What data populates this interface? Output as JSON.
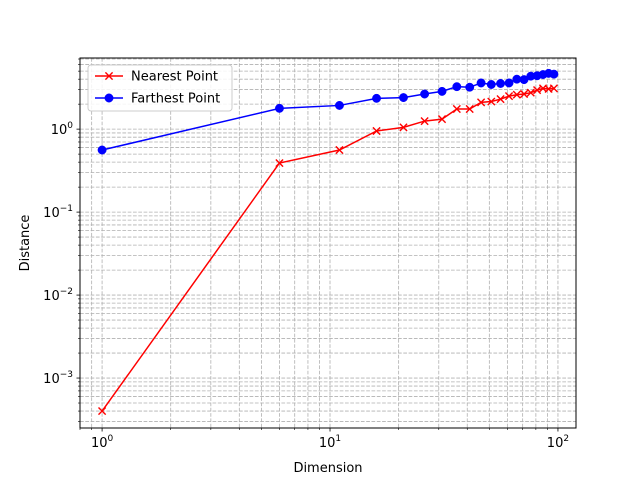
{
  "chart_data": {
    "type": "line",
    "xlabel": "Dimension",
    "ylabel": "Distance",
    "xscale": "log",
    "yscale": "log",
    "xlim": [
      0.8,
      120
    ],
    "ylim": [
      0.00025,
      7.2
    ],
    "grid": "major+minor, dashed",
    "legend_position": "top-left",
    "x_tick_labels": [
      {
        "value": 1,
        "base": "10",
        "exp": "0"
      },
      {
        "value": 10,
        "base": "10",
        "exp": "1"
      },
      {
        "value": 100,
        "base": "10",
        "exp": "2"
      }
    ],
    "y_tick_labels": [
      {
        "value": 0.001,
        "base": "10",
        "exp": "−3"
      },
      {
        "value": 0.01,
        "base": "10",
        "exp": "−2"
      },
      {
        "value": 0.1,
        "base": "10",
        "exp": "−1"
      },
      {
        "value": 1,
        "base": "10",
        "exp": "0"
      }
    ],
    "x": [
      1,
      6,
      11,
      16,
      21,
      26,
      31,
      36,
      41,
      46,
      51,
      56,
      61,
      66,
      71,
      76,
      81,
      86,
      91,
      96
    ],
    "series": [
      {
        "name": "Nearest Point",
        "color": "#ff0000",
        "marker": "x",
        "values": [
          0.0004,
          0.39,
          0.56,
          0.95,
          1.05,
          1.25,
          1.32,
          1.75,
          1.75,
          2.1,
          2.15,
          2.3,
          2.5,
          2.6,
          2.65,
          2.75,
          2.95,
          3.1,
          3.05,
          3.1
        ]
      },
      {
        "name": "Farthest Point",
        "color": "#0000ff",
        "marker": "o",
        "values": [
          0.56,
          1.78,
          1.93,
          2.35,
          2.4,
          2.65,
          2.85,
          3.25,
          3.2,
          3.6,
          3.45,
          3.55,
          3.6,
          4.0,
          3.95,
          4.35,
          4.4,
          4.55,
          4.7,
          4.6
        ]
      }
    ]
  }
}
